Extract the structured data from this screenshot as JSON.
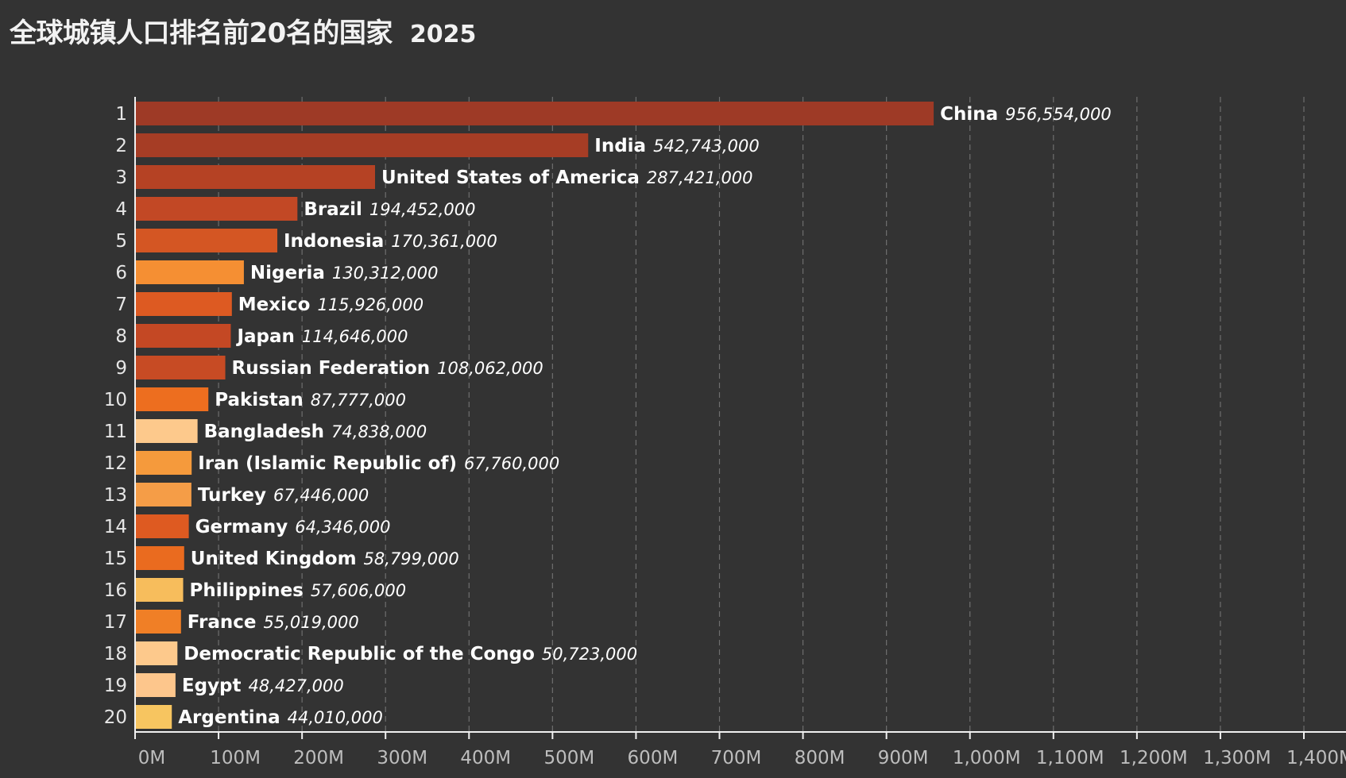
{
  "chart_data": {
    "type": "bar",
    "orientation": "horizontal",
    "title": "全球城镇人口排名前20名的国家",
    "subtitle": "2025",
    "xlim": [
      0,
      1400000000
    ],
    "x_ticks": [
      {
        "value": 0,
        "label": "0M"
      },
      {
        "value": 100000000,
        "label": "100M"
      },
      {
        "value": 200000000,
        "label": "200M"
      },
      {
        "value": 300000000,
        "label": "300M"
      },
      {
        "value": 400000000,
        "label": "400M"
      },
      {
        "value": 500000000,
        "label": "500M"
      },
      {
        "value": 600000000,
        "label": "600M"
      },
      {
        "value": 700000000,
        "label": "700M"
      },
      {
        "value": 800000000,
        "label": "800M"
      },
      {
        "value": 900000000,
        "label": "900M"
      },
      {
        "value": 1000000000,
        "label": "1,000M"
      },
      {
        "value": 1100000000,
        "label": "1,100M"
      },
      {
        "value": 1200000000,
        "label": "1,200M"
      },
      {
        "value": 1300000000,
        "label": "1,300M"
      },
      {
        "value": 1400000000,
        "label": "1,400M"
      }
    ],
    "grid": true,
    "legend": "none",
    "bars": [
      {
        "rank": "1",
        "name": "China",
        "value": 956554000,
        "value_label": "956,554,000",
        "color": "#9e3a26"
      },
      {
        "rank": "2",
        "name": "India",
        "value": 542743000,
        "value_label": "542,743,000",
        "color": "#a63d25"
      },
      {
        "rank": "3",
        "name": "United States of America",
        "value": 287421000,
        "value_label": "287,421,000",
        "color": "#b54224"
      },
      {
        "rank": "4",
        "name": "Brazil",
        "value": 194452000,
        "value_label": "194,452,000",
        "color": "#c24825"
      },
      {
        "rank": "5",
        "name": "Indonesia",
        "value": 170361000,
        "value_label": "170,361,000",
        "color": "#d45623"
      },
      {
        "rank": "6",
        "name": "Nigeria",
        "value": 130312000,
        "value_label": "130,312,000",
        "color": "#f58f33"
      },
      {
        "rank": "7",
        "name": "Mexico",
        "value": 115926000,
        "value_label": "115,926,000",
        "color": "#dd5a22"
      },
      {
        "rank": "8",
        "name": "Japan",
        "value": 114646000,
        "value_label": "114,646,000",
        "color": "#c44824"
      },
      {
        "rank": "9",
        "name": "Russian Federation",
        "value": 108062000,
        "value_label": "108,062,000",
        "color": "#c74b24"
      },
      {
        "rank": "10",
        "name": "Pakistan",
        "value": 87777000,
        "value_label": "87,777,000",
        "color": "#ed6e1f"
      },
      {
        "rank": "11",
        "name": "Bangladesh",
        "value": 74838000,
        "value_label": "74,838,000",
        "color": "#fdc98c"
      },
      {
        "rank": "12",
        "name": "Iran (Islamic Republic of)",
        "value": 67760000,
        "value_label": "67,760,000",
        "color": "#f59a3c"
      },
      {
        "rank": "13",
        "name": "Turkey",
        "value": 67446000,
        "value_label": "67,446,000",
        "color": "#f59d47"
      },
      {
        "rank": "14",
        "name": "Germany",
        "value": 64346000,
        "value_label": "64,346,000",
        "color": "#de5a21"
      },
      {
        "rank": "15",
        "name": "United Kingdom",
        "value": 58799000,
        "value_label": "58,799,000",
        "color": "#ea6b1f"
      },
      {
        "rank": "16",
        "name": "Philippines",
        "value": 57606000,
        "value_label": "57,606,000",
        "color": "#f7bd5c"
      },
      {
        "rank": "17",
        "name": "France",
        "value": 55019000,
        "value_label": "55,019,000",
        "color": "#f07f26"
      },
      {
        "rank": "18",
        "name": "Democratic Republic of the Congo",
        "value": 50723000,
        "value_label": "50,723,000",
        "color": "#fdc98c"
      },
      {
        "rank": "19",
        "name": "Egypt",
        "value": 48427000,
        "value_label": "48,427,000",
        "color": "#fdc68c"
      },
      {
        "rank": "20",
        "name": "Argentina",
        "value": 44010000,
        "value_label": "44,010,000",
        "color": "#f7c560"
      }
    ]
  }
}
